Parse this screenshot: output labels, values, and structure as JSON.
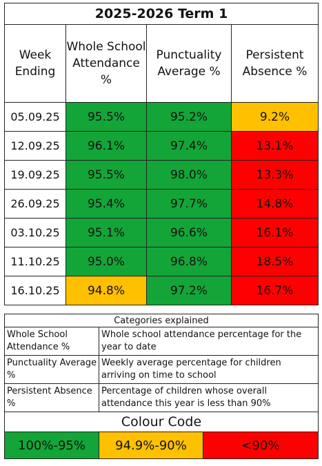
{
  "main_table": {
    "title": "2025-2026 Term 1",
    "headers": [
      "Week Ending",
      "Whole School Attendance %",
      "Punctuality Average %",
      "Persistent Absence %"
    ],
    "rows": [
      {
        "week": "05.09.25",
        "attendance": "95.5%",
        "punctuality": "95.2%",
        "absence": "9.2%",
        "colors": [
          "green",
          "green",
          "amber"
        ]
      },
      {
        "week": "12.09.25",
        "attendance": "96.1%",
        "punctuality": "97.4%",
        "absence": "13.1%",
        "colors": [
          "green",
          "green",
          "red"
        ]
      },
      {
        "week": "19.09.25",
        "attendance": "95.5%",
        "punctuality": "98.0%",
        "absence": "13.3%",
        "colors": [
          "green",
          "green",
          "red"
        ]
      },
      {
        "week": "26.09.25",
        "attendance": "95.4%",
        "punctuality": "97.7%",
        "absence": "14.8%",
        "colors": [
          "green",
          "green",
          "red"
        ]
      },
      {
        "week": "03.10.25",
        "attendance": "95.1%",
        "punctuality": "96.6%",
        "absence": "16.1%",
        "colors": [
          "green",
          "green",
          "red"
        ]
      },
      {
        "week": "11.10.25",
        "attendance": "95.0%",
        "punctuality": "96.8%",
        "absence": "18.5%",
        "colors": [
          "green",
          "green",
          "red"
        ]
      },
      {
        "week": "16.10.25",
        "attendance": "94.8%",
        "punctuality": "97.2%",
        "absence": "16.7%",
        "colors": [
          "amber",
          "green",
          "red"
        ]
      }
    ]
  },
  "categories": {
    "title": "Categories explained",
    "items": [
      {
        "term": "Whole School Attendance %",
        "definition": "Whole school attendance percentage for the year to date"
      },
      {
        "term": "Punctuality Average %",
        "definition": "Weekly average percentage for children arriving on time to school"
      },
      {
        "term": "Persistent Absence %",
        "definition": "Percentage of children whose overall attendance this year is less than 90%"
      }
    ]
  },
  "colour_code": {
    "title": "Colour Code",
    "bands": [
      {
        "label": "100%-95%",
        "color": "#13a538"
      },
      {
        "label": "94.9%-90%",
        "color": "#ffc000"
      },
      {
        "label": "<90%",
        "color": "#ff0000"
      }
    ]
  },
  "colors": {
    "green": "#13a538",
    "amber": "#ffc000",
    "red": "#ff0000"
  }
}
